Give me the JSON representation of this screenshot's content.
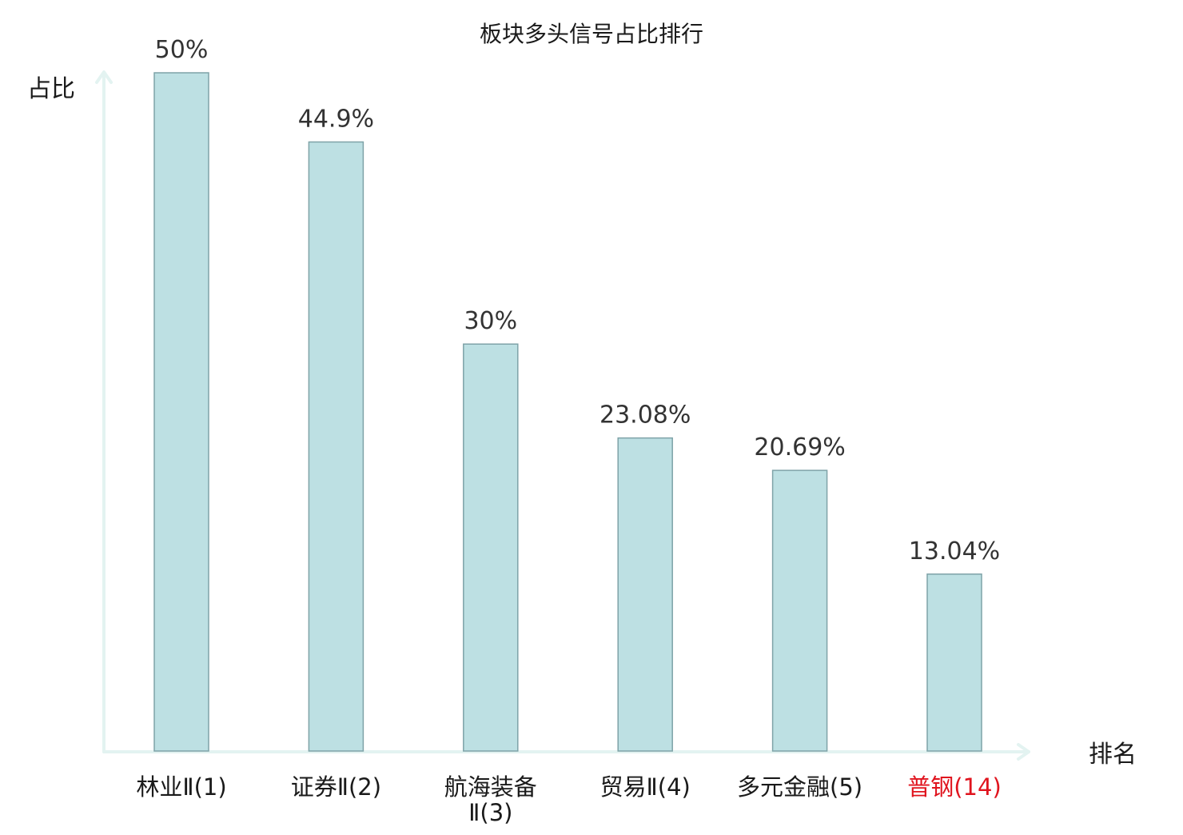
{
  "chart_data": {
    "type": "bar",
    "title": "板块多头信号占比排行",
    "ylabel": "占比",
    "xlabel": "排名",
    "ylim": [
      0,
      50
    ],
    "grid": false,
    "categories": [
      [
        "林业Ⅱ(1)"
      ],
      [
        "证券Ⅱ(2)"
      ],
      [
        "航海装备",
        "Ⅱ(3)"
      ],
      [
        "贸易Ⅱ(4)"
      ],
      [
        "多元金融(5)"
      ],
      [
        "普钢(14)"
      ]
    ],
    "values": [
      50,
      44.9,
      30,
      23.08,
      20.69,
      13.04
    ],
    "value_labels": [
      "50%",
      "44.9%",
      "30%",
      "23.08%",
      "20.69%",
      "13.04%"
    ],
    "highlight_index": 5
  },
  "colors": {
    "bar_fill": "#bde0e3",
    "bar_stroke": "#7fa3a8",
    "axis": "#e3f3f1",
    "highlight_label": "#e0141e",
    "text": "#1a1a1a"
  }
}
